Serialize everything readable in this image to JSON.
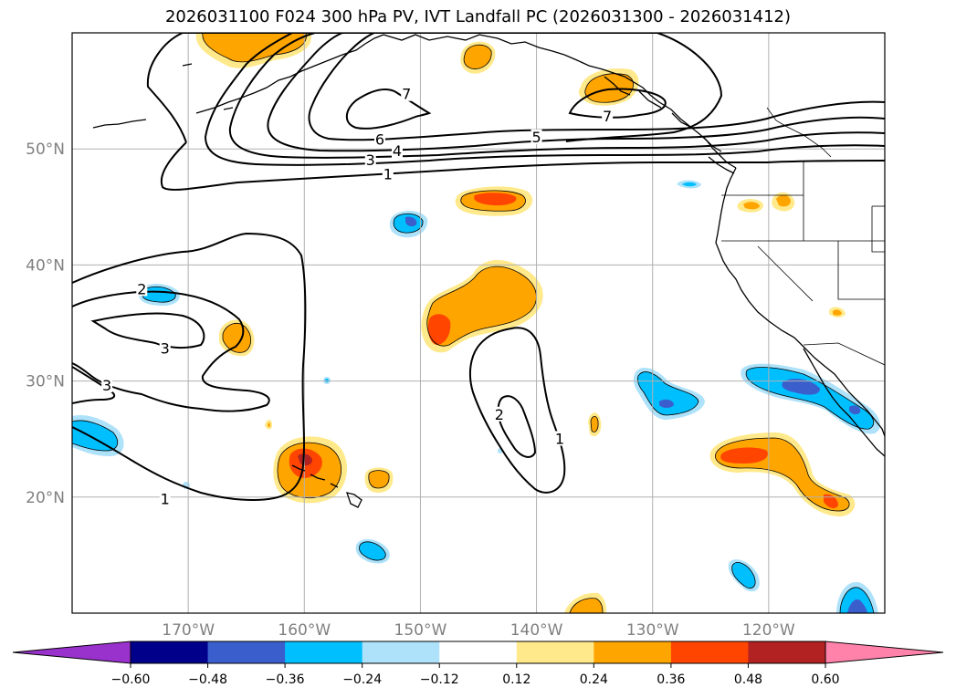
{
  "figure": {
    "title": "2026031100 F024 300 hPa PV, IVT Landfall PC (2026031300 - 2026031412)"
  },
  "map_axes": {
    "lon_range": [
      -180,
      -110
    ],
    "lat_range": [
      10,
      60
    ],
    "lat_ticks": [
      {
        "value": 20,
        "label": "20°N"
      },
      {
        "value": 30,
        "label": "30°N"
      },
      {
        "value": 40,
        "label": "40°N"
      },
      {
        "value": 50,
        "label": "50°N"
      }
    ],
    "lon_ticks": [
      {
        "value": -170,
        "label": "170°W"
      },
      {
        "value": -160,
        "label": "160°W"
      },
      {
        "value": -150,
        "label": "150°W"
      },
      {
        "value": -140,
        "label": "140°W"
      },
      {
        "value": -130,
        "label": "130°W"
      },
      {
        "value": -120,
        "label": "120°W"
      }
    ],
    "gridlines": true
  },
  "colorbar": {
    "boundaries": [
      -0.72,
      -0.6,
      -0.48,
      -0.36,
      -0.24,
      -0.12,
      0.12,
      0.24,
      0.36,
      0.48,
      0.6,
      0.72
    ],
    "colors": [
      "#9932CC",
      "#00008B",
      "#3A5FCD",
      "#00BFFF",
      "#ADE2FA",
      "#FFFFFF",
      "#FFE98A",
      "#FFA500",
      "#FF4500",
      "#B22222",
      "#FF82AB"
    ],
    "tick_labels": [
      "−0.60",
      "−0.48",
      "−0.36",
      "−0.24",
      "−0.12",
      "0.12",
      "0.24",
      "0.36",
      "0.48",
      "0.60"
    ],
    "extend": "both"
  },
  "contour_labels": [
    {
      "text": "7",
      "lon": -151.2,
      "lat": 54.6
    },
    {
      "text": "7",
      "lon": -133.9,
      "lat": 52.7
    },
    {
      "text": "6",
      "lon": -153.5,
      "lat": 50.7
    },
    {
      "text": "5",
      "lon": -140.0,
      "lat": 50.9
    },
    {
      "text": "4",
      "lon": -152.0,
      "lat": 49.7
    },
    {
      "text": "3",
      "lon": -154.3,
      "lat": 48.9
    },
    {
      "text": "1",
      "lon": -152.8,
      "lat": 47.7
    },
    {
      "text": "2",
      "lon": -174.0,
      "lat": 37.8
    },
    {
      "text": "3",
      "lon": -172.0,
      "lat": 32.7
    },
    {
      "text": "3",
      "lon": -177.0,
      "lat": 29.5
    },
    {
      "text": "1",
      "lon": -172.0,
      "lat": 19.7
    },
    {
      "text": "2",
      "lon": -143.2,
      "lat": 27.0
    },
    {
      "text": "1",
      "lon": -138.0,
      "lat": 24.9
    }
  ],
  "colors": {
    "contour": "#000000",
    "gridline": "#b0b0b0",
    "coastline": "#000000"
  }
}
